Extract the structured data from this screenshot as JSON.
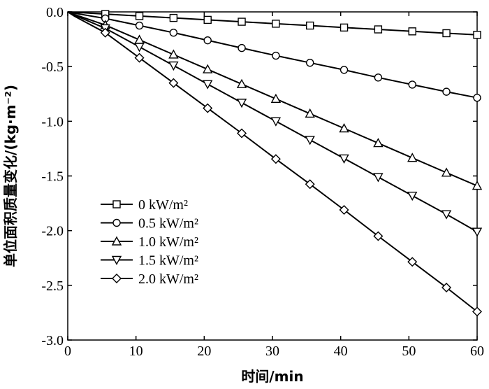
{
  "chart_data": {
    "type": "line",
    "xlabel": "时间/min",
    "ylabel": "单位面积质量变化/(kg·m⁻²)",
    "xlim": [
      0,
      60
    ],
    "ylim": [
      -3.0,
      0.0
    ],
    "xticks": [
      0,
      10,
      20,
      30,
      40,
      50,
      60
    ],
    "yticks": [
      0.0,
      -0.5,
      -1.0,
      -1.5,
      -2.0,
      -2.5,
      -3.0
    ],
    "xtick_labels": [
      "0",
      "10",
      "20",
      "30",
      "40",
      "50",
      "60"
    ],
    "ytick_labels": [
      "0.0",
      "-0.5",
      "-1.0",
      "-1.5",
      "-2.0",
      "-2.5",
      "-3.0"
    ],
    "grid": false,
    "legend_position": "lower-left",
    "series": [
      {
        "name": "0 kW/m²",
        "marker": "square",
        "x": [
          0,
          0.5,
          1,
          5.5,
          10.5,
          15.5,
          20.5,
          25.5,
          30.5,
          35.5,
          40.5,
          45.5,
          50.5,
          55.5,
          60
        ],
        "y": [
          0,
          -0.002,
          -0.004,
          -0.02,
          -0.038,
          -0.055,
          -0.073,
          -0.09,
          -0.108,
          -0.125,
          -0.143,
          -0.16,
          -0.178,
          -0.195,
          -0.21
        ]
      },
      {
        "name": "0.5 kW/m²",
        "marker": "circle",
        "x": [
          0,
          0.5,
          1,
          5.5,
          10.5,
          15.5,
          20.5,
          25.5,
          30.5,
          35.5,
          40.5,
          45.5,
          50.5,
          55.5,
          60
        ],
        "y": [
          0,
          -0.006,
          -0.012,
          -0.06,
          -0.125,
          -0.19,
          -0.26,
          -0.33,
          -0.4,
          -0.465,
          -0.53,
          -0.6,
          -0.665,
          -0.73,
          -0.785
        ]
      },
      {
        "name": "1.0 kW/m²",
        "marker": "triangle-up",
        "x": [
          0,
          0.5,
          1,
          5.5,
          10.5,
          15.5,
          20.5,
          25.5,
          30.5,
          35.5,
          40.5,
          45.5,
          50.5,
          55.5,
          60
        ],
        "y": [
          0,
          -0.012,
          -0.024,
          -0.12,
          -0.255,
          -0.39,
          -0.525,
          -0.66,
          -0.795,
          -0.93,
          -1.065,
          -1.2,
          -1.335,
          -1.47,
          -1.59
        ]
      },
      {
        "name": "1.5 kW/m²",
        "marker": "triangle-down",
        "x": [
          0,
          0.5,
          1,
          5.5,
          10.5,
          15.5,
          20.5,
          25.5,
          30.5,
          35.5,
          40.5,
          45.5,
          50.5,
          55.5,
          60
        ],
        "y": [
          0,
          -0.015,
          -0.03,
          -0.15,
          -0.32,
          -0.49,
          -0.66,
          -0.83,
          -1.0,
          -1.17,
          -1.34,
          -1.51,
          -1.68,
          -1.85,
          -2.01
        ]
      },
      {
        "name": "2.0 kW/m²",
        "marker": "diamond",
        "x": [
          0,
          0.5,
          1,
          5.5,
          10.5,
          15.5,
          20.5,
          25.5,
          30.5,
          35.5,
          40.5,
          45.5,
          50.5,
          55.5,
          60
        ],
        "y": [
          0,
          -0.02,
          -0.04,
          -0.19,
          -0.42,
          -0.65,
          -0.88,
          -1.11,
          -1.345,
          -1.575,
          -1.81,
          -2.05,
          -2.285,
          -2.52,
          -2.74
        ]
      }
    ]
  }
}
